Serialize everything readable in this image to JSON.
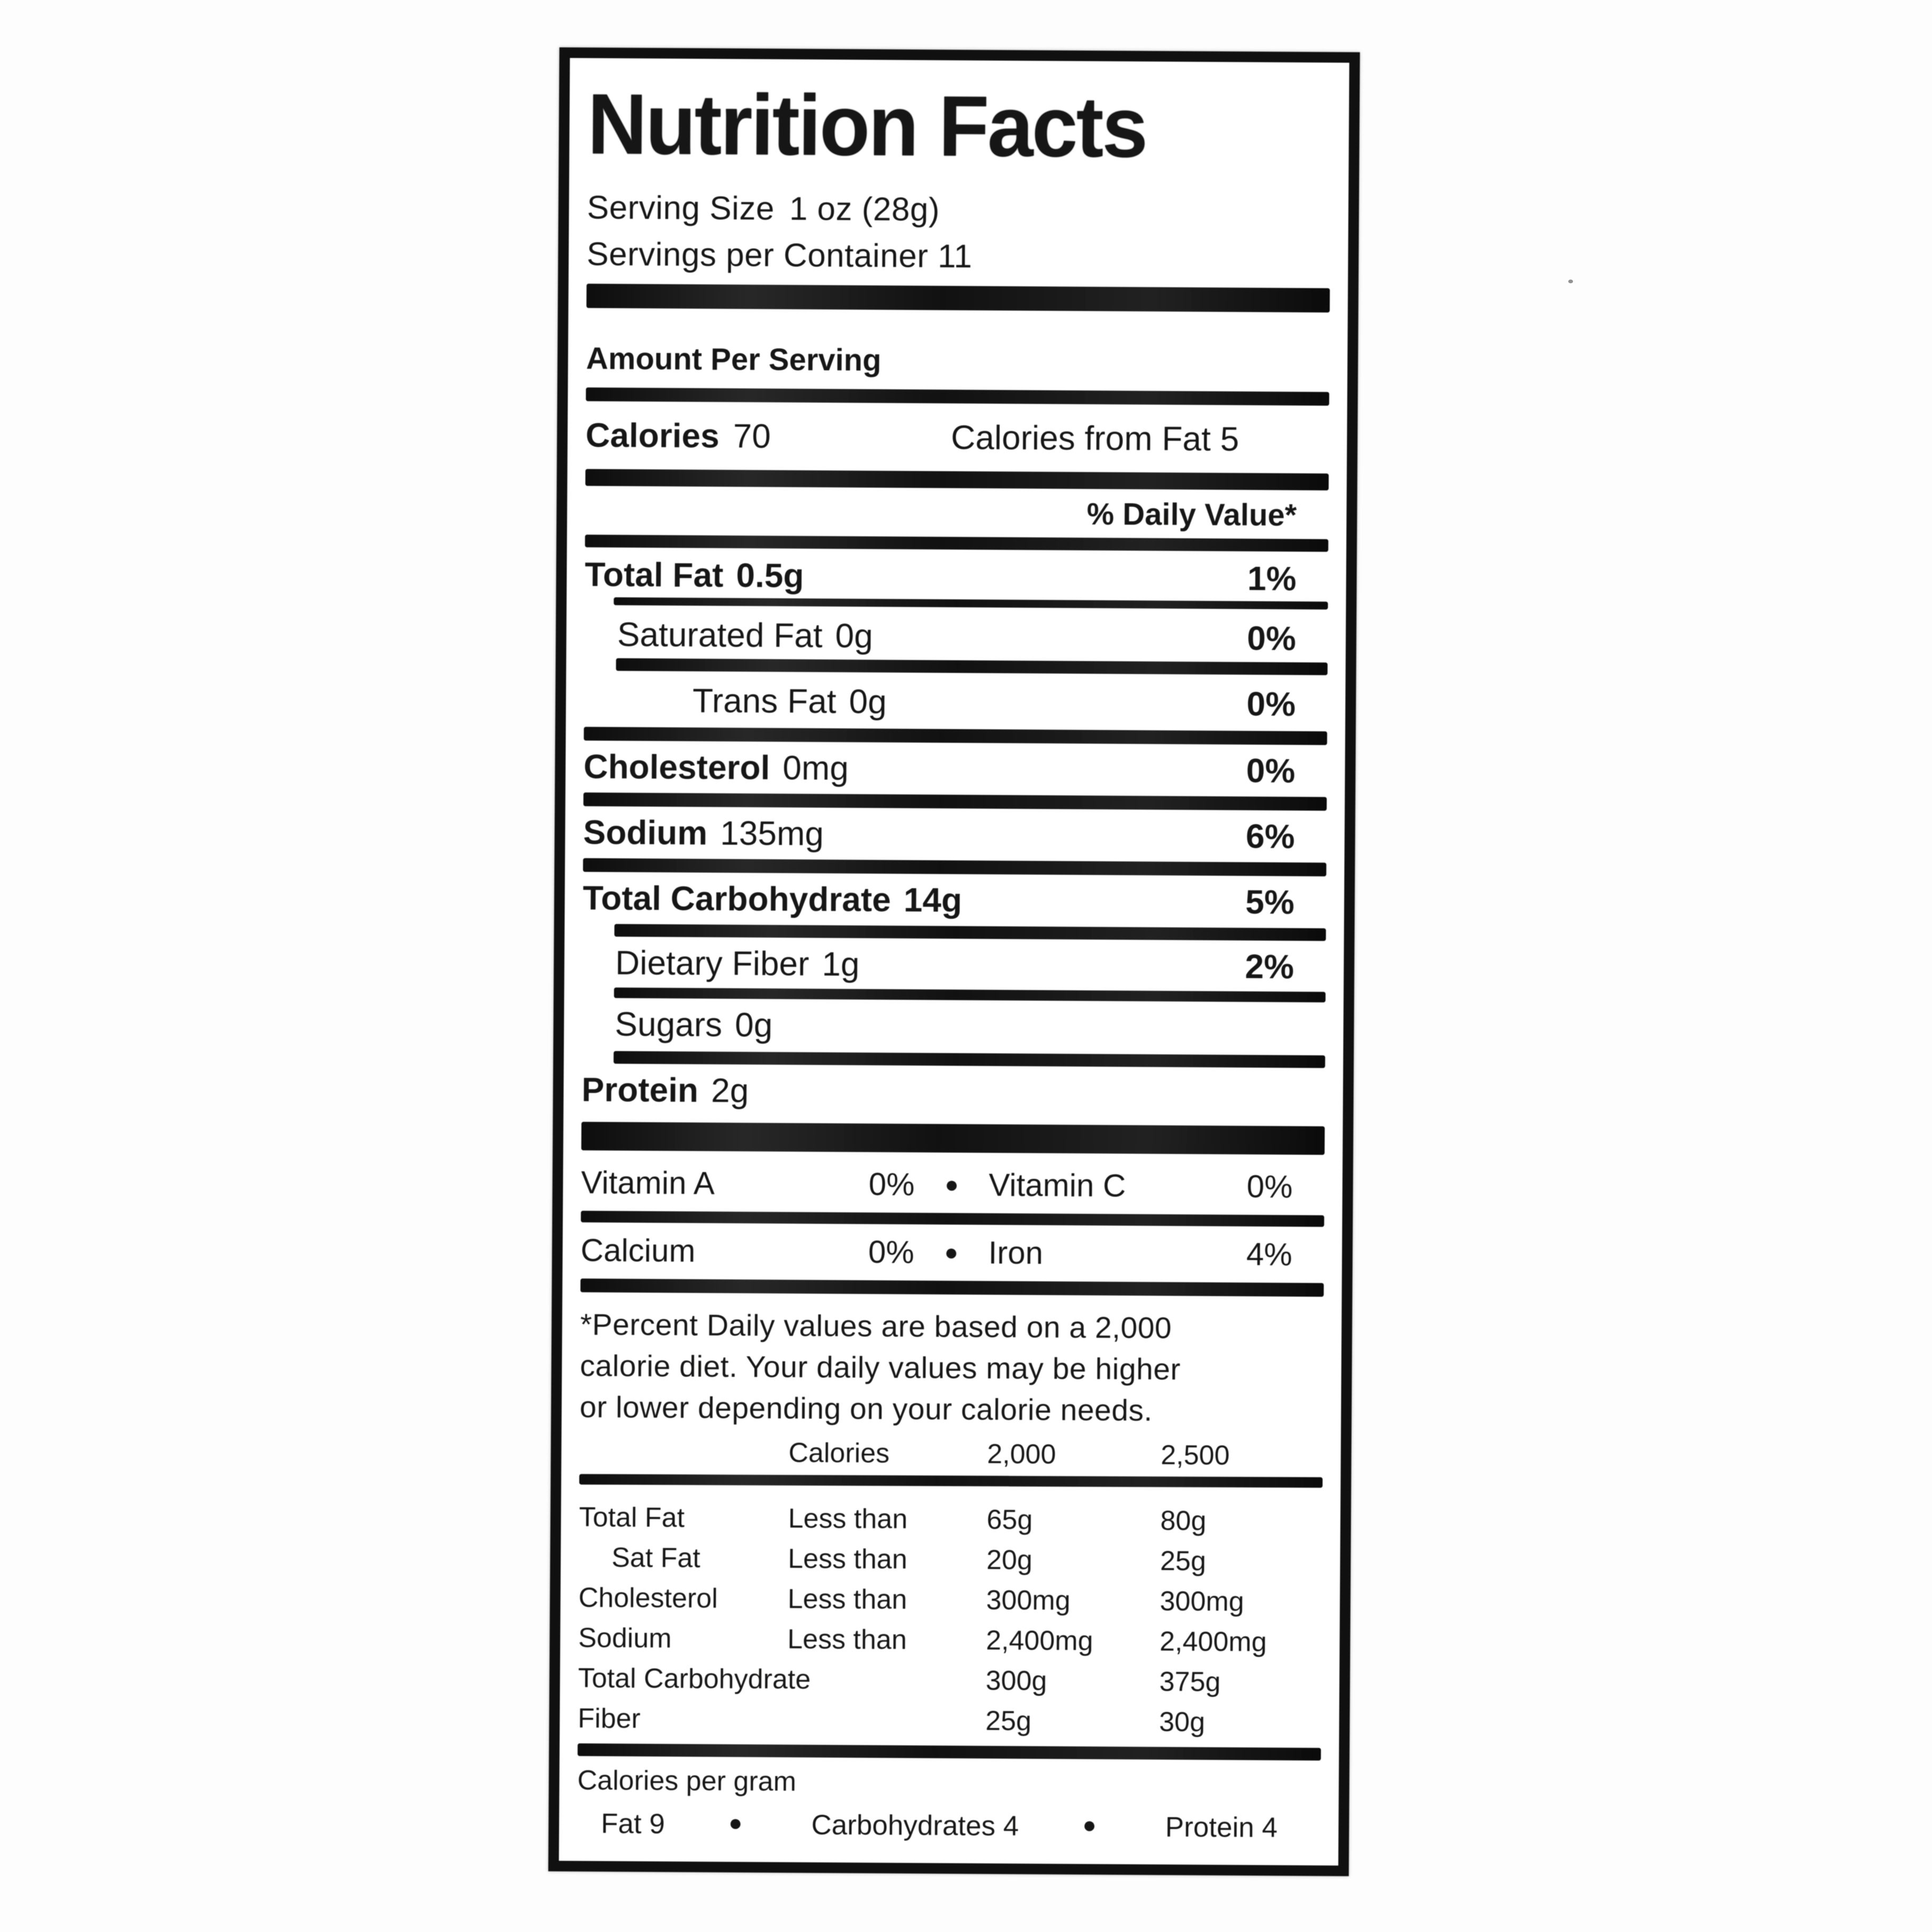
{
  "bullet": "●",
  "title": "Nutrition Facts",
  "serving": {
    "size_label": "Serving Size",
    "size_value": "1 oz (28g)",
    "per_container": "Servings per Container 11"
  },
  "amount_per_serving": "Amount Per Serving",
  "calories": {
    "label": "Calories",
    "value": "70",
    "from_fat": "Calories from Fat 5"
  },
  "daily_value_header": "% Daily Value*",
  "nutrients": [
    {
      "name": "Total Fat",
      "amount": "0.5g",
      "dv": "1%"
    },
    {
      "name": "Saturated Fat",
      "amount": "0g",
      "dv": "0%"
    },
    {
      "name": "Trans Fat",
      "amount": "0g",
      "dv": "0%"
    },
    {
      "name": "Cholesterol",
      "amount": "0mg",
      "dv": "0%"
    },
    {
      "name": "Sodium",
      "amount": "135mg",
      "dv": "6%"
    },
    {
      "name": "Total Carbohydrate",
      "amount": "14g",
      "dv": "5%"
    },
    {
      "name": "Dietary Fiber",
      "amount": "1g",
      "dv": "2%"
    },
    {
      "name": "Sugars",
      "amount": "0g",
      "dv": ""
    },
    {
      "name": "Protein",
      "amount": "2g",
      "dv": ""
    }
  ],
  "vitamins": [
    {
      "n1": "Vitamin A",
      "v1": "0%",
      "n2": "Vitamin C",
      "v2": "0%"
    },
    {
      "n1": "Calcium",
      "v1": "0%",
      "n2": "Iron",
      "v2": "4%"
    }
  ],
  "footnote": [
    "*Percent Daily values are based on a 2,000",
    "calorie diet. Your daily values may be higher",
    "or lower depending on your calorie needs."
  ],
  "table": {
    "header": {
      "calories": "Calories",
      "c2000": "2,000",
      "c2500": "2,500"
    },
    "rows": [
      {
        "name": "Total Fat",
        "qual": "Less than",
        "v2000": "65g",
        "v2500": "80g"
      },
      {
        "name": "Sat Fat",
        "qual": "Less than",
        "v2000": "20g",
        "v2500": "25g"
      },
      {
        "name": "Cholesterol",
        "qual": "Less than",
        "v2000": "300mg",
        "v2500": "300mg"
      },
      {
        "name": "Sodium",
        "qual": "Less than",
        "v2000": "2,400mg",
        "v2500": "2,400mg"
      },
      {
        "name": "Total Carbohydrate",
        "qual": "",
        "v2000": "300g",
        "v2500": "375g"
      },
      {
        "name": "Fiber",
        "qual": "",
        "v2000": "25g",
        "v2500": "30g"
      }
    ]
  },
  "calories_per_gram": {
    "title": "Calories per gram",
    "fat": "Fat 9",
    "carbs": "Carbohydrates 4",
    "protein": "Protein 4"
  }
}
